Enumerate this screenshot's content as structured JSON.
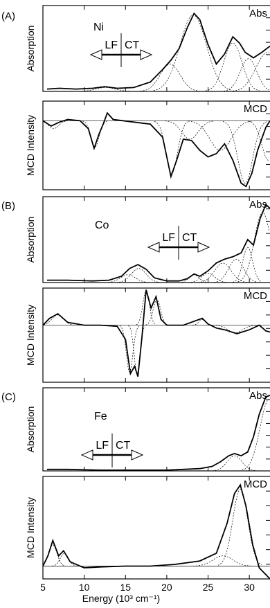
{
  "figure": {
    "xlabel": "Energy (10³ cm⁻¹)",
    "xlim": [
      5,
      32.5
    ],
    "xticks": [
      5,
      10,
      15,
      20,
      25,
      30
    ],
    "xtick_labels": [
      "5",
      "10",
      "15",
      "20",
      "25",
      "30"
    ]
  },
  "chart_data": [
    {
      "type": "line",
      "panel": "(A)",
      "sample": "Ni",
      "spectrum_label": "Abs",
      "ylabel": "Absorption",
      "xlim": [
        5,
        32.5
      ],
      "ylim": [
        0,
        1.1
      ],
      "lf_ct_boundary": 17.2,
      "series": [
        {
          "name": "Abs",
          "x": [
            5.5,
            7,
            9,
            11,
            12.5,
            14,
            16,
            18,
            19.5,
            20.5,
            21.5,
            22.5,
            23.3,
            24,
            25,
            26,
            27,
            28,
            28.8,
            29.5,
            30.5,
            31.5,
            32.5
          ],
          "values": [
            0.03,
            0.04,
            0.03,
            0.04,
            0.06,
            0.04,
            0.05,
            0.12,
            0.28,
            0.4,
            0.55,
            0.82,
            1.0,
            0.92,
            0.6,
            0.35,
            0.48,
            0.7,
            0.62,
            0.5,
            0.43,
            0.5,
            0.58
          ]
        }
      ],
      "components": [
        {
          "center": 12.6,
          "height": 0.05,
          "width": 1.2
        },
        {
          "center": 20.4,
          "height": 0.35,
          "width": 1.2
        },
        {
          "center": 23.2,
          "height": 0.98,
          "width": 1.6
        },
        {
          "center": 28.0,
          "height": 0.62,
          "width": 1.1
        },
        {
          "center": 29.9,
          "height": 0.42,
          "width": 1.0
        },
        {
          "center": 32.2,
          "height": 0.5,
          "width": 1.4
        }
      ]
    },
    {
      "type": "line",
      "panel": "(A)",
      "sample": "Ni",
      "spectrum_label": "MCD",
      "ylabel": "MCD Intensity",
      "xlim": [
        5,
        32.5
      ],
      "ylim": [
        -1.05,
        0.3
      ],
      "series": [
        {
          "name": "MCD",
          "x": [
            5,
            6,
            7,
            8,
            9.5,
            10.5,
            11.2,
            11.8,
            12.3,
            12.8,
            13.5,
            16,
            18,
            19.5,
            20.5,
            21.2,
            22,
            23,
            24,
            25,
            26,
            27,
            28,
            29,
            29.6,
            30.3,
            31,
            32,
            32.5
          ],
          "values": [
            0.0,
            -0.08,
            -0.02,
            0.02,
            0.0,
            -0.12,
            -0.42,
            -0.2,
            -0.05,
            0.12,
            0.02,
            -0.02,
            -0.05,
            -0.25,
            -0.85,
            -0.6,
            -0.28,
            -0.3,
            -0.45,
            -0.55,
            -0.5,
            -0.35,
            -0.6,
            -0.95,
            -1.0,
            -0.8,
            -0.45,
            -0.1,
            0.0
          ]
        }
      ],
      "components": [
        {
          "center": 6.3,
          "height": -0.12,
          "width": 0.6
        },
        {
          "center": 11.3,
          "height": -0.4,
          "width": 0.5
        },
        {
          "center": 20.6,
          "height": -0.8,
          "width": 0.7
        },
        {
          "center": 22.8,
          "height": -0.28,
          "width": 1.0
        },
        {
          "center": 26.5,
          "height": -0.45,
          "width": 1.3
        },
        {
          "center": 29.5,
          "height": -0.95,
          "width": 0.9
        },
        {
          "center": 32.3,
          "height": -0.6,
          "width": 0.8
        }
      ]
    },
    {
      "type": "line",
      "panel": "(B)",
      "sample": "Co",
      "spectrum_label": "Abs",
      "ylabel": "Absorption",
      "xlim": [
        5,
        32.5
      ],
      "ylim": [
        0,
        1.1
      ],
      "lf_ct_boundary": 21.8,
      "series": [
        {
          "name": "Abs",
          "x": [
            5.5,
            8,
            11,
            13,
            14.5,
            15.5,
            16.5,
            17.5,
            18.5,
            20,
            21.5,
            22.5,
            23.3,
            24,
            25,
            26,
            27,
            28,
            29,
            29.8,
            30.5,
            31.3,
            32,
            32.5
          ],
          "values": [
            0.03,
            0.03,
            0.02,
            0.03,
            0.08,
            0.18,
            0.23,
            0.17,
            0.06,
            0.02,
            0.02,
            0.05,
            0.11,
            0.08,
            0.15,
            0.25,
            0.3,
            0.33,
            0.38,
            0.55,
            0.48,
            0.82,
            1.0,
            0.95
          ]
        }
      ],
      "components": [
        {
          "center": 15.3,
          "height": 0.1,
          "width": 0.9
        },
        {
          "center": 16.6,
          "height": 0.18,
          "width": 0.9
        },
        {
          "center": 23.3,
          "height": 0.1,
          "width": 0.6
        },
        {
          "center": 25.0,
          "height": 0.12,
          "width": 0.8
        },
        {
          "center": 26.8,
          "height": 0.25,
          "width": 1.0
        },
        {
          "center": 28.4,
          "height": 0.3,
          "width": 0.9
        },
        {
          "center": 29.8,
          "height": 0.45,
          "width": 0.6
        },
        {
          "center": 31.6,
          "height": 0.9,
          "width": 1.0
        }
      ]
    },
    {
      "type": "line",
      "panel": "(B)",
      "sample": "Co",
      "spectrum_label": "MCD",
      "ylabel": "MCD Intensity",
      "xlim": [
        5,
        32.5
      ],
      "ylim": [
        -1.0,
        0.65
      ],
      "series": [
        {
          "name": "MCD",
          "x": [
            5,
            5.8,
            6.8,
            8,
            10,
            12,
            14,
            15,
            15.6,
            16.1,
            16.5,
            17,
            17.5,
            18.1,
            18.7,
            19.3,
            20,
            22,
            24.3,
            25,
            26,
            27,
            28.5,
            30,
            31.2,
            32,
            32.5
          ],
          "values": [
            0.0,
            0.12,
            0.2,
            0.05,
            0.0,
            0.0,
            -0.02,
            -0.25,
            -0.85,
            -0.72,
            -0.9,
            -0.2,
            0.62,
            0.3,
            0.5,
            0.1,
            0.0,
            0.0,
            0.12,
            0.02,
            -0.05,
            -0.08,
            -0.15,
            -0.08,
            0.0,
            -0.1,
            -0.12
          ]
        }
      ],
      "components": [
        {
          "center": 6.8,
          "height": 0.18,
          "width": 0.7
        },
        {
          "center": 15.5,
          "height": -0.82,
          "width": 0.4
        },
        {
          "center": 16.4,
          "height": -0.85,
          "width": 0.35
        },
        {
          "center": 17.5,
          "height": 0.6,
          "width": 0.4
        },
        {
          "center": 18.8,
          "height": 0.45,
          "width": 0.45
        },
        {
          "center": 24.3,
          "height": 0.1,
          "width": 0.4
        },
        {
          "center": 28.3,
          "height": -0.13,
          "width": 0.9
        }
      ]
    },
    {
      "type": "line",
      "panel": "(C)",
      "sample": "Fe",
      "spectrum_label": "Abs",
      "ylabel": "Absorption",
      "xlim": [
        5,
        32.5
      ],
      "ylim": [
        0,
        1.1
      ],
      "lf_ct_boundary": 15.8,
      "series": [
        {
          "name": "Abs",
          "x": [
            5.5,
            8,
            12,
            16,
            20,
            24,
            25.5,
            26.5,
            27.5,
            28.2,
            29,
            29.8,
            30.5,
            31.2,
            32,
            32.5
          ],
          "values": [
            0.02,
            0.02,
            0.01,
            0.01,
            0.01,
            0.03,
            0.06,
            0.12,
            0.2,
            0.23,
            0.2,
            0.25,
            0.45,
            0.75,
            0.98,
            1.0
          ]
        }
      ],
      "components": [
        {
          "center": 28.2,
          "height": 0.2,
          "width": 0.9
        },
        {
          "center": 32.4,
          "height": 0.95,
          "width": 1.1
        }
      ]
    },
    {
      "type": "line",
      "panel": "(C)",
      "sample": "Fe",
      "spectrum_label": "MCD",
      "ylabel": "MCD Intensity",
      "xlim": [
        5,
        32.5
      ],
      "ylim": [
        -0.15,
        1.05
      ],
      "series": [
        {
          "name": "MCD",
          "x": [
            5,
            5.6,
            6.2,
            6.9,
            7.5,
            8.3,
            10,
            12,
            15,
            18,
            21,
            24,
            26,
            27.3,
            28.2,
            28.9,
            29.6,
            30.4,
            31.2,
            32,
            32.5
          ],
          "values": [
            0.0,
            0.12,
            0.3,
            0.12,
            0.18,
            0.05,
            -0.02,
            -0.01,
            0.0,
            0.0,
            0.02,
            0.06,
            0.15,
            0.5,
            0.85,
            0.95,
            0.7,
            0.25,
            -0.02,
            -0.1,
            -0.15
          ]
        }
      ],
      "components": [
        {
          "center": 6.2,
          "height": 0.25,
          "width": 0.5
        },
        {
          "center": 7.6,
          "height": 0.15,
          "width": 0.5
        },
        {
          "center": 26.8,
          "height": 0.12,
          "width": 1.2
        },
        {
          "center": 28.9,
          "height": 0.9,
          "width": 0.9
        }
      ]
    }
  ],
  "panels": [
    {
      "letter": "(A)",
      "sample": "Ni",
      "lf": "LF",
      "ct": "CT"
    },
    {
      "letter": "(B)",
      "sample": "Co",
      "lf": "LF",
      "ct": "CT"
    },
    {
      "letter": "(C)",
      "sample": "Fe",
      "lf": "LF",
      "ct": "CT"
    }
  ]
}
